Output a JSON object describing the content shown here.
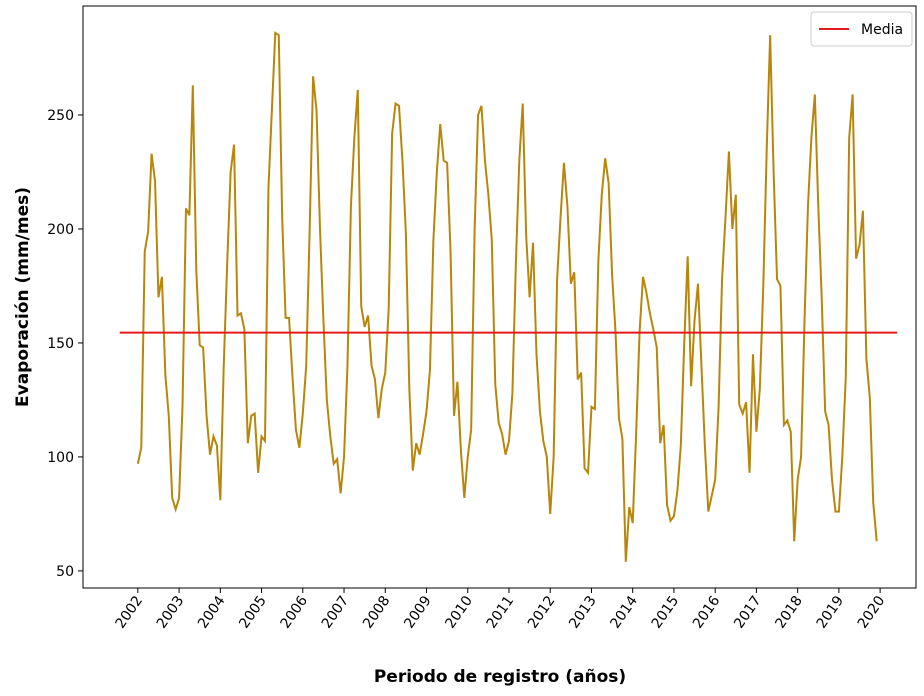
{
  "chart_data": {
    "type": "line",
    "x_label": "Periodo de registro (años)",
    "y_label": "Evaporación (mm/mes)",
    "xlim": [
      2000.67,
      2020.87
    ],
    "ylim": [
      42.5,
      297.8
    ],
    "xticks": [
      2002,
      2003,
      2004,
      2005,
      2006,
      2007,
      2008,
      2009,
      2010,
      2011,
      2012,
      2013,
      2014,
      2015,
      2016,
      2017,
      2018,
      2019,
      2020
    ],
    "yticks": [
      50,
      100,
      150,
      200,
      250
    ],
    "grid": false,
    "legend": "upper right",
    "series": [
      {
        "color": "#b8860b",
        "x": [
          2002.0,
          2002.083,
          2002.167,
          2002.25,
          2002.333,
          2002.417,
          2002.5,
          2002.583,
          2002.667,
          2002.75,
          2002.833,
          2002.917,
          2003.0,
          2003.083,
          2003.167,
          2003.25,
          2003.333,
          2003.417,
          2003.5,
          2003.583,
          2003.667,
          2003.75,
          2003.833,
          2003.917,
          2004.0,
          2004.083,
          2004.167,
          2004.25,
          2004.333,
          2004.417,
          2004.5,
          2004.583,
          2004.667,
          2004.75,
          2004.833,
          2004.917,
          2005.0,
          2005.083,
          2005.167,
          2005.25,
          2005.333,
          2005.417,
          2005.5,
          2005.583,
          2005.667,
          2005.75,
          2005.833,
          2005.917,
          2006.0,
          2006.083,
          2006.167,
          2006.25,
          2006.333,
          2006.417,
          2006.5,
          2006.583,
          2006.667,
          2006.75,
          2006.833,
          2006.917,
          2007.0,
          2007.083,
          2007.167,
          2007.25,
          2007.333,
          2007.417,
          2007.5,
          2007.583,
          2007.667,
          2007.75,
          2007.833,
          2007.917,
          2008.0,
          2008.083,
          2008.167,
          2008.25,
          2008.333,
          2008.417,
          2008.5,
          2008.583,
          2008.667,
          2008.75,
          2008.833,
          2008.917,
          2009.0,
          2009.083,
          2009.167,
          2009.25,
          2009.333,
          2009.417,
          2009.5,
          2009.583,
          2009.667,
          2009.75,
          2009.833,
          2009.917,
          2010.0,
          2010.083,
          2010.167,
          2010.25,
          2010.333,
          2010.417,
          2010.5,
          2010.583,
          2010.667,
          2010.75,
          2010.833,
          2010.917,
          2011.0,
          2011.083,
          2011.167,
          2011.25,
          2011.333,
          2011.417,
          2011.5,
          2011.583,
          2011.667,
          2011.75,
          2011.833,
          2011.917,
          2012.0,
          2012.083,
          2012.167,
          2012.25,
          2012.333,
          2012.417,
          2012.5,
          2012.583,
          2012.667,
          2012.75,
          2012.833,
          2012.917,
          2013.0,
          2013.083,
          2013.167,
          2013.25,
          2013.333,
          2013.417,
          2013.5,
          2013.583,
          2013.667,
          2013.75,
          2013.833,
          2013.917,
          2014.0,
          2014.083,
          2014.167,
          2014.25,
          2014.333,
          2014.417,
          2014.5,
          2014.583,
          2014.667,
          2014.75,
          2014.833,
          2014.917,
          2015.0,
          2015.083,
          2015.167,
          2015.25,
          2015.333,
          2015.417,
          2015.5,
          2015.583,
          2015.667,
          2015.75,
          2015.833,
          2015.917,
          2016.0,
          2016.083,
          2016.167,
          2016.25,
          2016.333,
          2016.417,
          2016.5,
          2016.583,
          2016.667,
          2016.75,
          2016.833,
          2016.917,
          2017.0,
          2017.083,
          2017.167,
          2017.25,
          2017.333,
          2017.417,
          2017.5,
          2017.583,
          2017.667,
          2017.75,
          2017.833,
          2017.917,
          2018.0,
          2018.083,
          2018.167,
          2018.25,
          2018.333,
          2018.417,
          2018.5,
          2018.583,
          2018.667,
          2018.75,
          2018.833,
          2018.917,
          2019.0,
          2019.083,
          2019.167,
          2019.25,
          2019.333,
          2019.417,
          2019.5,
          2019.583,
          2019.667,
          2019.75,
          2019.833,
          2019.917
        ],
        "values": [
          97,
          104,
          190,
          199,
          233,
          221,
          170,
          179,
          136,
          118,
          82,
          77,
          82,
          122,
          209,
          206,
          263,
          182,
          149,
          148,
          118,
          101,
          109,
          105,
          81,
          140,
          185,
          225,
          237,
          162,
          163,
          156,
          106,
          118,
          119,
          93,
          109,
          107,
          218,
          252,
          286,
          285,
          205,
          161,
          161,
          135,
          112,
          104,
          119,
          140,
          200,
          267,
          252,
          200,
          160,
          125,
          109,
          97,
          99,
          84,
          100,
          140,
          210,
          240,
          261,
          166,
          157,
          162,
          140,
          134,
          117,
          130,
          137,
          165,
          242,
          255,
          254,
          230,
          198,
          130,
          94,
          106,
          101,
          110,
          120,
          138,
          195,
          225,
          246,
          230,
          229,
          190,
          118,
          133,
          103,
          82,
          100,
          112,
          200,
          250,
          254,
          230,
          215,
          195,
          132,
          115,
          110,
          101,
          107,
          128,
          185,
          230,
          255,
          197,
          170,
          194,
          145,
          120,
          107,
          100,
          75,
          100,
          178,
          205,
          229,
          210,
          176,
          181,
          134,
          137,
          95,
          93,
          122,
          121,
          186,
          215,
          231,
          220,
          180,
          155,
          117,
          108,
          54,
          78,
          71,
          110,
          155,
          179,
          172,
          163,
          156,
          148,
          106,
          114,
          79,
          72,
          74,
          85,
          105,
          150,
          188,
          131,
          160,
          176,
          140,
          105,
          76,
          83,
          90,
          122,
          178,
          205,
          234,
          200,
          215,
          123,
          119,
          124,
          93,
          145,
          111,
          130,
          175,
          235,
          285,
          225,
          178,
          175,
          114,
          116,
          111,
          63,
          90,
          100,
          160,
          210,
          240,
          259,
          210,
          170,
          120,
          114,
          90,
          76,
          76,
          100,
          135,
          240,
          259,
          187,
          193,
          208,
          143,
          126,
          80,
          63
        ]
      },
      {
        "name": "Media",
        "color": "#e31a1c",
        "x": [
          2001.56,
          2020.41
        ],
        "values": [
          154.5,
          154.5
        ]
      }
    ]
  }
}
